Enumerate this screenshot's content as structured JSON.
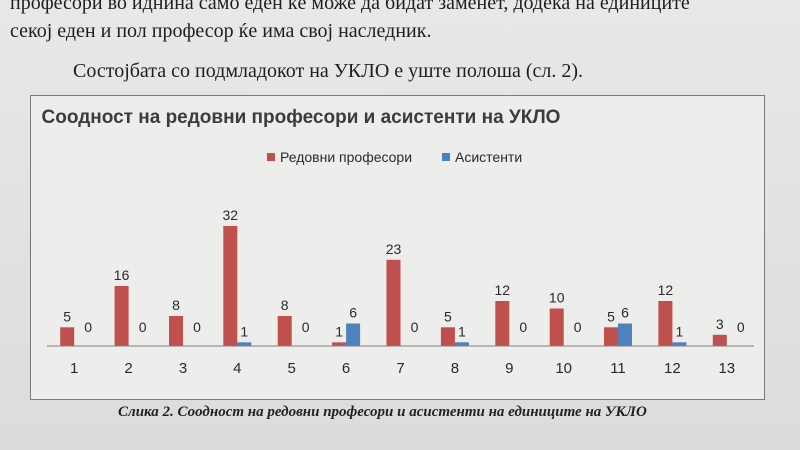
{
  "document": {
    "line_top": "професори во иднина само еден ќе може да бидат заменет, додека на единиците",
    "line_2": "секој еден и пол професор ќе има свој наследник.",
    "line_3": "Состојбата со подмладокот на УКЛО е уште полоша (сл. 2).",
    "caption": "Слика 2. Соодност на редовни професори и асистенти на единиците на УКЛО"
  },
  "colors": {
    "professors": "#c0504d",
    "assistants": "#4f81bd",
    "axis": "#7f7f7f"
  },
  "chart_data": {
    "type": "bar",
    "title": "Соодност на редовни професори и асистенти на УКЛО",
    "legend_position": "top",
    "grid": false,
    "xlabel": "",
    "ylabel": "",
    "ylim": [
      0,
      32
    ],
    "categories": [
      "1",
      "2",
      "3",
      "4",
      "5",
      "6",
      "7",
      "8",
      "9",
      "10",
      "11",
      "12",
      "13"
    ],
    "series": [
      {
        "name": "Редовни професори",
        "values": [
          5,
          16,
          8,
          32,
          8,
          1,
          23,
          5,
          12,
          10,
          5,
          12,
          3
        ]
      },
      {
        "name": "Асистенти",
        "values": [
          0,
          0,
          0,
          1,
          0,
          6,
          0,
          1,
          0,
          0,
          6,
          1,
          0
        ]
      }
    ]
  }
}
